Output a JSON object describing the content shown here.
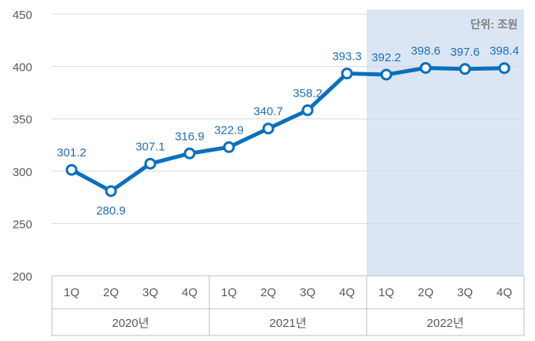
{
  "chart_data": {
    "type": "line",
    "unit_label": "단위: 조원",
    "ylim": [
      200,
      450
    ],
    "yticks": [
      200,
      250,
      300,
      350,
      400,
      450
    ],
    "categories": [
      "1Q",
      "2Q",
      "3Q",
      "4Q",
      "1Q",
      "2Q",
      "3Q",
      "4Q",
      "1Q",
      "2Q",
      "3Q",
      "4Q"
    ],
    "groups": [
      {
        "label": "2020년",
        "quarters": [
          "1Q",
          "2Q",
          "3Q",
          "4Q"
        ]
      },
      {
        "label": "2021년",
        "quarters": [
          "1Q",
          "2Q",
          "3Q",
          "4Q"
        ]
      },
      {
        "label": "2022년",
        "quarters": [
          "1Q",
          "2Q",
          "3Q",
          "4Q"
        ]
      }
    ],
    "series": [
      {
        "values": [
          301.2,
          280.9,
          307.1,
          316.9,
          322.9,
          340.7,
          358.2,
          393.3,
          392.2,
          398.6,
          397.6,
          398.4
        ]
      }
    ],
    "data_labels": [
      "301.2",
      "280.9",
      "307.1",
      "316.9",
      "322.9",
      "340.7",
      "358.2",
      "393.3",
      "392.2",
      "398.6",
      "397.6",
      "398.4"
    ],
    "highlight_group": "2022년",
    "colors": {
      "line": "#0b6fbd",
      "highlight": "#dbe6f4",
      "grid": "#d9d9d9",
      "label": "#1f6fb5"
    },
    "grid": true
  }
}
